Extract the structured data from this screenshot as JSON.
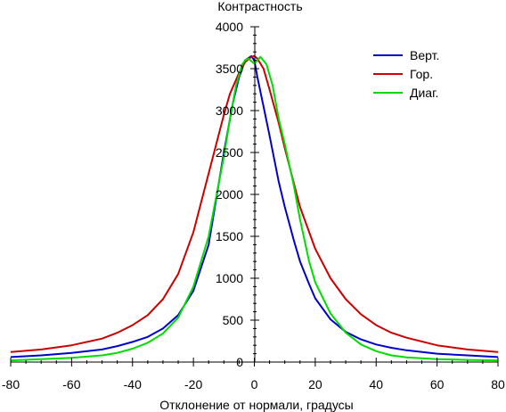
{
  "chart_data": {
    "type": "line",
    "title": "",
    "xlabel": "Отклонение от нормали, градусы",
    "ylabel": "Контрастность",
    "xlim": [
      -80,
      80
    ],
    "ylim": [
      0,
      4000
    ],
    "x_ticks": [
      -80,
      -60,
      -40,
      -20,
      0,
      20,
      40,
      60,
      80
    ],
    "y_ticks": [
      0,
      500,
      1000,
      1500,
      2000,
      2500,
      3000,
      3500,
      4000
    ],
    "grid": false,
    "legend_position": "top-right",
    "series": [
      {
        "name": "Верт.",
        "color": "#0000cc",
        "x": [
          -80,
          -70,
          -60,
          -50,
          -45,
          -40,
          -35,
          -30,
          -25,
          -20,
          -15,
          -10,
          -7,
          -5,
          -3,
          -1,
          0,
          1,
          3,
          5,
          8,
          10,
          13,
          15,
          18,
          20,
          25,
          30,
          35,
          40,
          45,
          50,
          60,
          70,
          80
        ],
        "values": [
          60,
          80,
          110,
          150,
          190,
          240,
          300,
          400,
          560,
          850,
          1400,
          2500,
          3100,
          3400,
          3600,
          3650,
          3600,
          3400,
          3050,
          2700,
          2150,
          1850,
          1450,
          1200,
          930,
          760,
          510,
          360,
          270,
          210,
          170,
          140,
          100,
          80,
          60
        ]
      },
      {
        "name": "Гор.",
        "color": "#cc0000",
        "x": [
          -80,
          -70,
          -60,
          -50,
          -45,
          -40,
          -35,
          -30,
          -25,
          -20,
          -15,
          -10,
          -8,
          -5,
          -3,
          -1,
          0,
          1,
          3,
          5,
          8,
          10,
          15,
          20,
          25,
          30,
          35,
          40,
          45,
          50,
          60,
          70,
          80
        ],
        "values": [
          120,
          150,
          200,
          280,
          350,
          440,
          560,
          750,
          1050,
          1550,
          2250,
          2950,
          3200,
          3450,
          3580,
          3640,
          3650,
          3620,
          3500,
          3250,
          2850,
          2550,
          1850,
          1350,
          1000,
          750,
          570,
          440,
          350,
          290,
          200,
          150,
          120
        ]
      },
      {
        "name": "Диаг.",
        "color": "#00dd00",
        "x": [
          -80,
          -70,
          -60,
          -50,
          -45,
          -40,
          -35,
          -30,
          -25,
          -20,
          -15,
          -10,
          -8,
          -6,
          -4,
          -3,
          -2,
          0,
          2,
          4,
          6,
          8,
          10,
          13,
          15,
          18,
          20,
          25,
          30,
          35,
          40,
          45,
          50,
          60,
          70,
          80
        ],
        "values": [
          20,
          35,
          50,
          80,
          110,
          160,
          230,
          340,
          530,
          900,
          1500,
          2450,
          2900,
          3300,
          3550,
          3600,
          3620,
          3560,
          3640,
          3550,
          3300,
          2900,
          2600,
          2100,
          1700,
          1200,
          950,
          580,
          350,
          210,
          130,
          80,
          55,
          35,
          25,
          20
        ]
      }
    ]
  }
}
